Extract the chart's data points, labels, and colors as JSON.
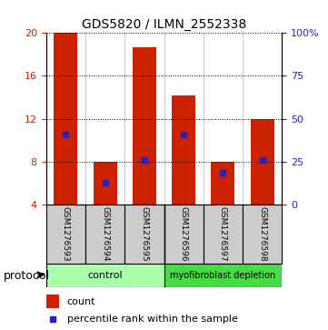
{
  "title": "GDS5820 / ILMN_2552338",
  "samples": [
    "GSM1276593",
    "GSM1276594",
    "GSM1276595",
    "GSM1276596",
    "GSM1276597",
    "GSM1276598"
  ],
  "bar_tops": [
    20.0,
    8.0,
    18.7,
    14.2,
    8.0,
    12.0
  ],
  "bar_bottom": 4.0,
  "percentile_values": [
    10.5,
    6.0,
    8.2,
    10.5,
    7.0,
    8.2
  ],
  "ylim_left": [
    4,
    20
  ],
  "ylim_right": [
    0,
    100
  ],
  "yticks_left": [
    4,
    8,
    12,
    16,
    20
  ],
  "yticks_right": [
    0,
    25,
    50,
    75,
    100
  ],
  "ytick_labels_right": [
    "0",
    "25",
    "50",
    "75",
    "100%"
  ],
  "bar_color": "#cc2200",
  "percentile_color": "#2222cc",
  "bar_width": 0.6,
  "grid_color": "#000000",
  "groups": [
    {
      "label": "control",
      "samples": [
        0,
        1,
        2
      ],
      "color": "#aaffaa"
    },
    {
      "label": "myofibroblast depletion",
      "samples": [
        3,
        4,
        5
      ],
      "color": "#44dd44"
    }
  ],
  "protocol_label": "protocol",
  "legend_count_label": "count",
  "legend_percentile_label": "percentile rank within the sample",
  "tick_label_color_left": "#cc2200",
  "tick_label_color_right": "#2222cc",
  "sample_box_color": "#cccccc",
  "bg_color": "#ffffff"
}
